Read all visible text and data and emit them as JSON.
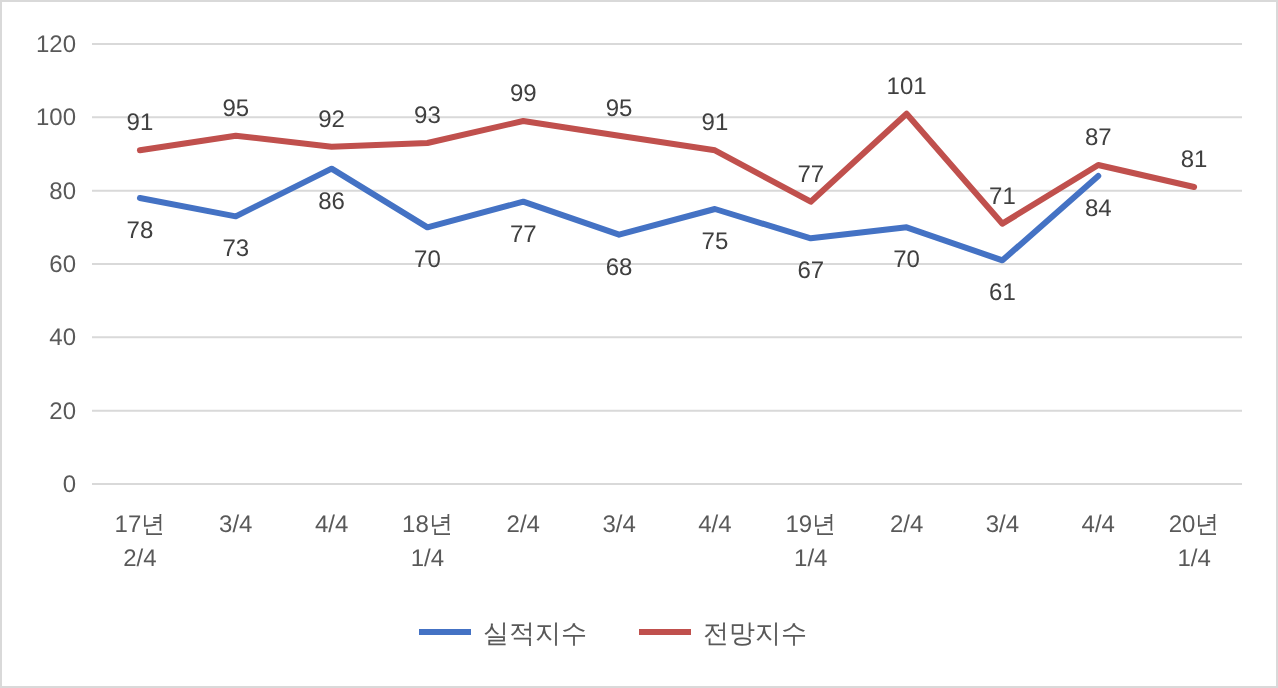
{
  "chart_data": {
    "type": "line",
    "categories": [
      "17년\n2/4",
      "3/4",
      "4/4",
      "18년\n1/4",
      "2/4",
      "3/4",
      "4/4",
      "19년\n1/4",
      "2/4",
      "3/4",
      "4/4",
      "20년\n1/4"
    ],
    "series": [
      {
        "name": "실적지수",
        "color": "#4472c4",
        "values": [
          78,
          73,
          86,
          70,
          77,
          68,
          75,
          67,
          70,
          61,
          84,
          null
        ]
      },
      {
        "name": "전망지수",
        "color": "#c0504d",
        "values": [
          91,
          95,
          92,
          93,
          99,
          95,
          91,
          77,
          101,
          71,
          87,
          81
        ]
      }
    ],
    "ylim": [
      0,
      120
    ],
    "yticks": [
      0,
      20,
      40,
      60,
      80,
      100,
      120
    ],
    "grid": "y",
    "legend": "bottom",
    "data_labels": true,
    "marker": "none",
    "line_style": "solid"
  }
}
